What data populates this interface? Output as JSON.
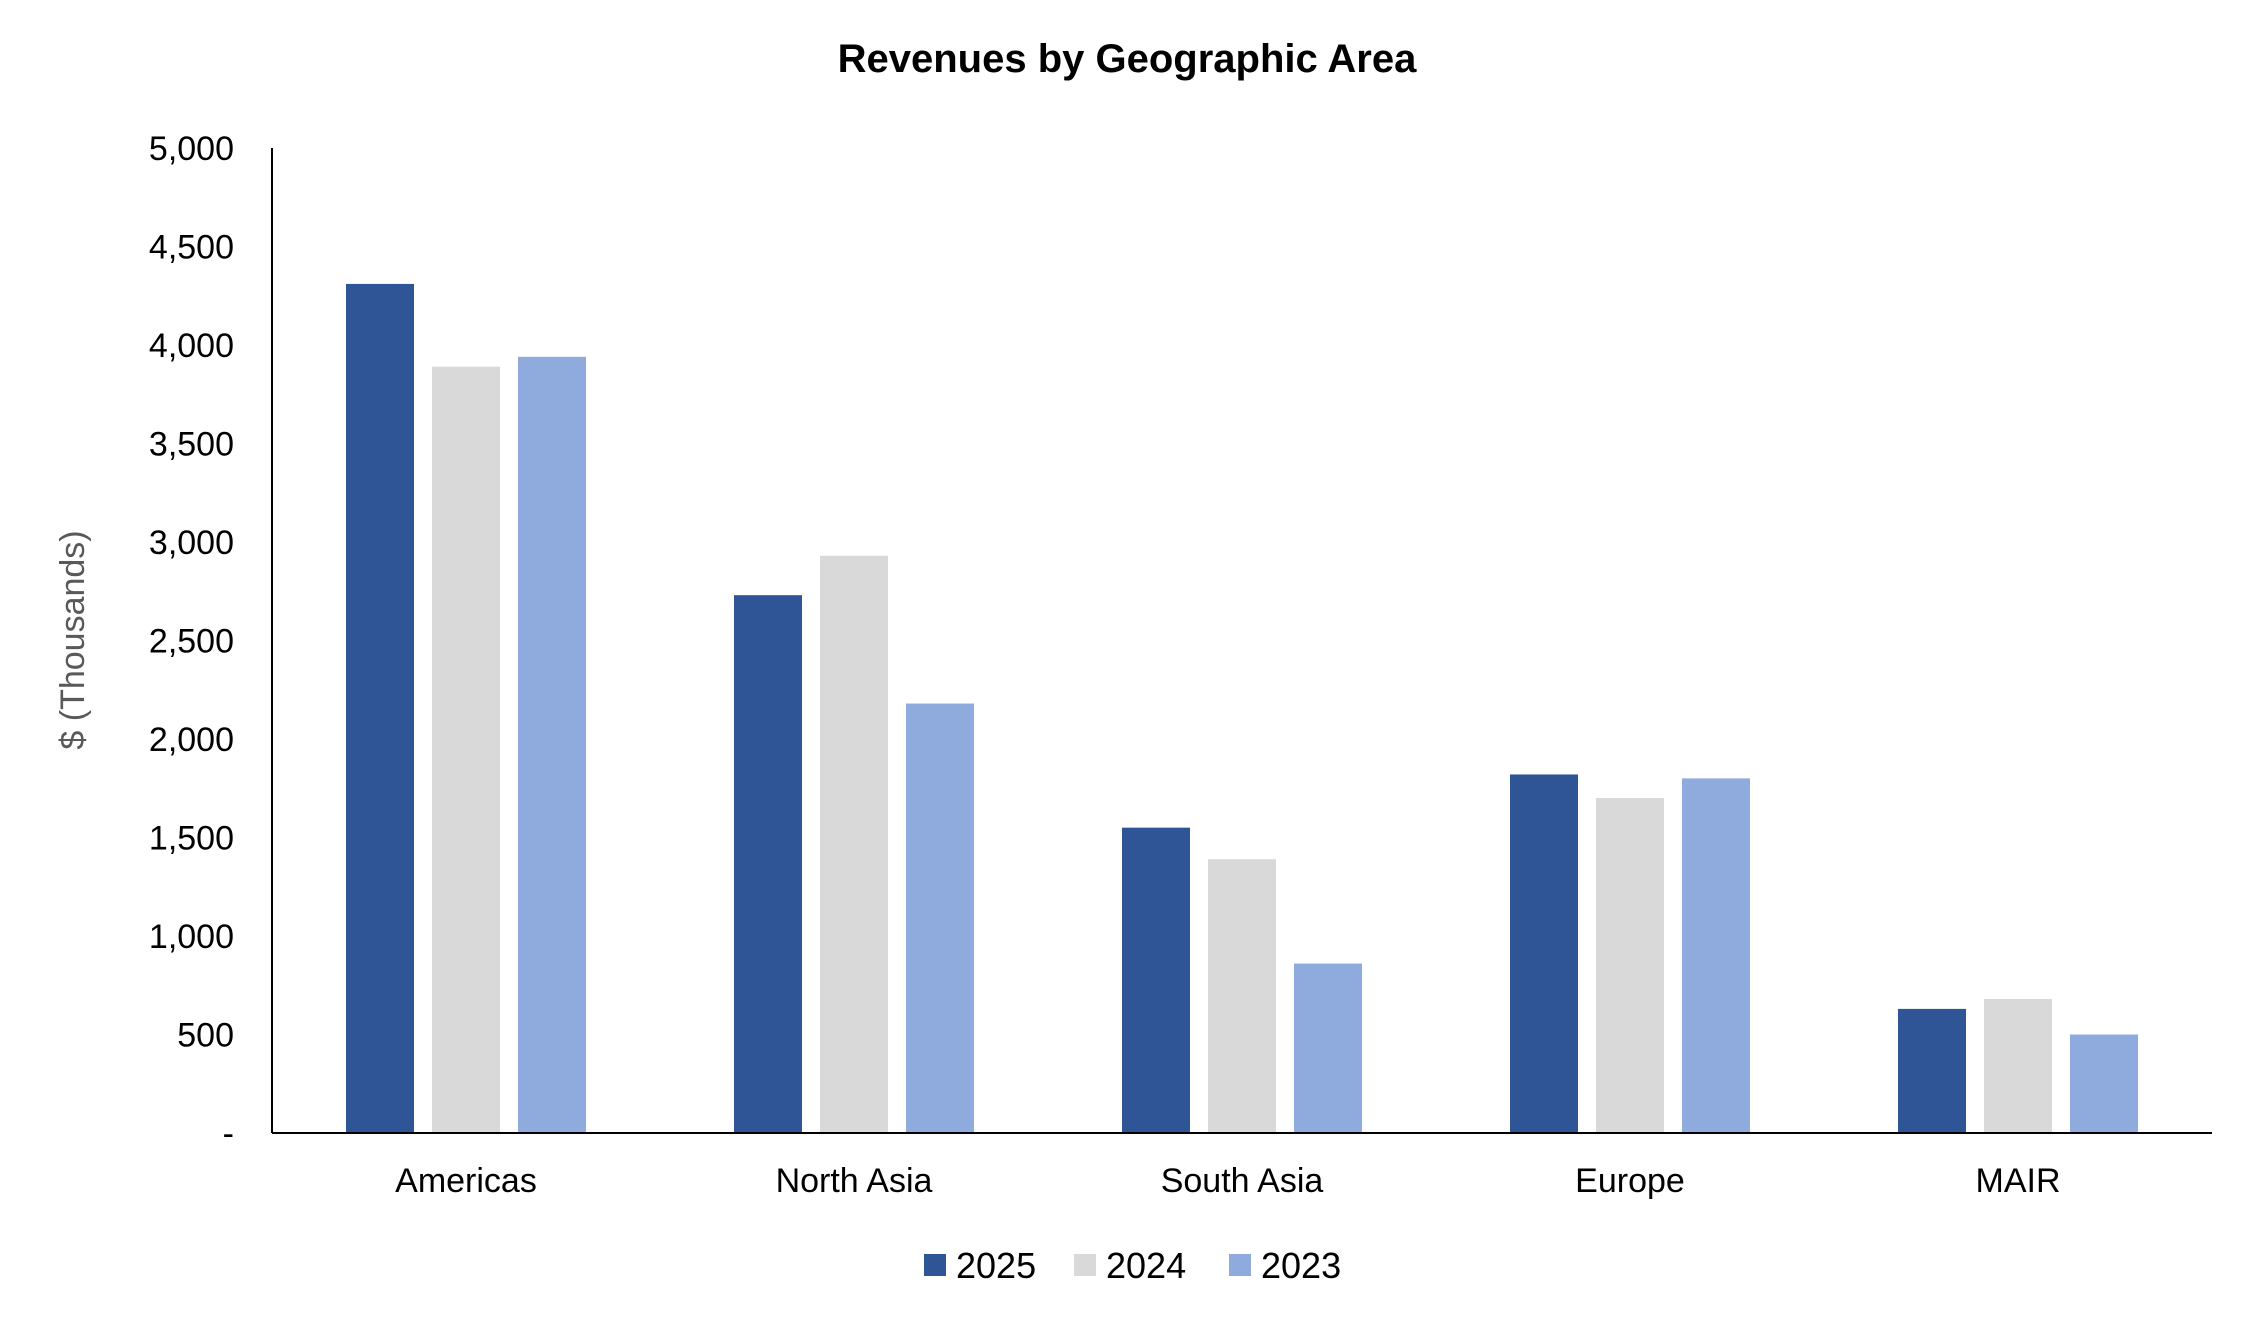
{
  "chart_data": {
    "type": "bar",
    "title": "Revenues by Geographic Area",
    "xlabel": "",
    "ylabel": "$ (Thousands)",
    "ylim": [
      0,
      5000
    ],
    "yticks": [
      0,
      500,
      1000,
      1500,
      2000,
      2500,
      3000,
      3500,
      4000,
      4500,
      5000
    ],
    "ytick_labels": [
      "-",
      "500",
      "1,000",
      "1,500",
      "2,000",
      "2,500",
      "3,000",
      "3,500",
      "4,000",
      "4,500",
      "5,000"
    ],
    "categories": [
      "Americas",
      "North Asia",
      "South Asia",
      "Europe",
      "MAIR"
    ],
    "series": [
      {
        "name": "2025",
        "color": "#2F5597",
        "values": [
          4310,
          2730,
          1550,
          1820,
          630
        ]
      },
      {
        "name": "2024",
        "color": "#D9D9D9",
        "values": [
          3890,
          2930,
          1390,
          1700,
          680
        ]
      },
      {
        "name": "2023",
        "color": "#8FAADC",
        "values": [
          3940,
          2180,
          860,
          1800,
          500
        ]
      }
    ],
    "grid": false,
    "legend": "bottom-center"
  }
}
